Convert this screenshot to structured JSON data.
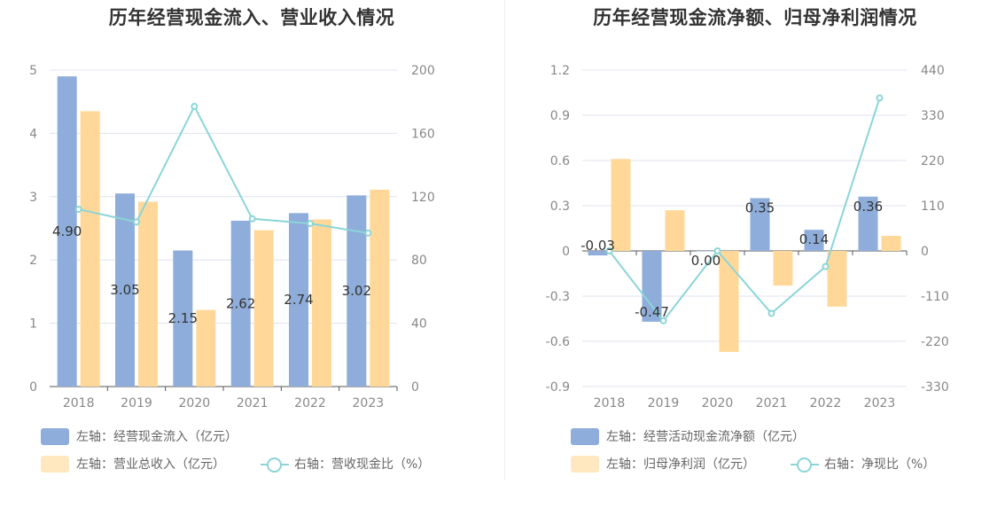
{
  "colors": {
    "bar_primary": "#8eadda",
    "bar_secondary": "#ffd899",
    "line": "#8bd5d7",
    "grid": "#e0e3ef",
    "axis_text": "#888888"
  },
  "chart_data": [
    {
      "type": "bar",
      "title": "历年经营现金流入、营业收入情况",
      "categories": [
        "2018",
        "2019",
        "2020",
        "2021",
        "2022",
        "2023"
      ],
      "left_axis": {
        "ticks": [
          "0",
          "1",
          "2",
          "3",
          "4",
          "5"
        ],
        "range": [
          0,
          5
        ]
      },
      "right_axis": {
        "ticks": [
          "0",
          "40",
          "80",
          "120",
          "160",
          "200"
        ],
        "range": [
          0,
          200
        ]
      },
      "grid": true,
      "legend_position": "bottom-left",
      "series": [
        {
          "name": "左轴：经营现金流入（亿元）",
          "kind": "bar",
          "axis": "left",
          "values": [
            4.9,
            3.05,
            2.15,
            2.62,
            2.74,
            3.02
          ],
          "data_labels": [
            "4.90",
            "3.05",
            "2.15",
            "2.62",
            "2.74",
            "3.02"
          ]
        },
        {
          "name": "左轴：营业总收入（亿元）",
          "kind": "bar",
          "axis": "left",
          "values": [
            4.35,
            2.92,
            1.21,
            2.47,
            2.64,
            3.11
          ]
        },
        {
          "name": "右轴：营收现金比（%）",
          "kind": "line",
          "axis": "right",
          "values": [
            112,
            104,
            177,
            106,
            103,
            97
          ]
        }
      ]
    },
    {
      "type": "bar",
      "title": "历年经营现金流净额、归母净利润情况",
      "categories": [
        "2018",
        "2019",
        "2020",
        "2021",
        "2022",
        "2023"
      ],
      "left_axis": {
        "ticks": [
          "-0.9",
          "-0.6",
          "-0.3",
          "0",
          "0.3",
          "0.6",
          "0.9",
          "1.2"
        ],
        "range": [
          -0.9,
          1.2
        ]
      },
      "right_axis": {
        "ticks": [
          "-330",
          "-220",
          "-110",
          "0",
          "110",
          "220",
          "330",
          "440"
        ],
        "range": [
          -330,
          440
        ]
      },
      "grid": true,
      "legend_position": "bottom-left",
      "series": [
        {
          "name": "左轴：经营活动现金流净额（亿元）",
          "kind": "bar",
          "axis": "left",
          "values": [
            -0.03,
            -0.47,
            0.0,
            0.35,
            0.14,
            0.36
          ],
          "data_labels": [
            "-0.03",
            "-0.47",
            "0.00",
            "0.35",
            "0.14",
            "0.36"
          ]
        },
        {
          "name": "左轴：归母净利润（亿元）",
          "kind": "bar",
          "axis": "left",
          "values": [
            0.61,
            0.27,
            -0.67,
            -0.23,
            -0.37,
            0.1
          ]
        },
        {
          "name": "右轴：净现比（%）",
          "kind": "line",
          "axis": "right",
          "values": [
            0,
            -170,
            0,
            -152,
            -38,
            372
          ]
        }
      ]
    }
  ]
}
